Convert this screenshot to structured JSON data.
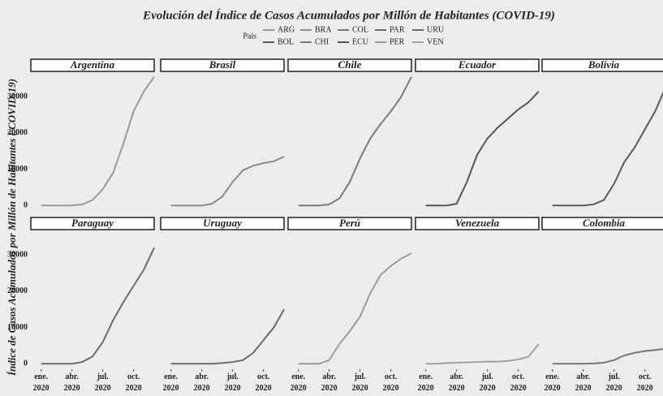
{
  "chart_data": {
    "type": "line",
    "title": "Evolución del Índice de Casos Acumulados por Millón de Habitantes (COVID-19)",
    "ylabel": "Índice de Casos Acumulados por Millón de Habitantes ( COVID-19)",
    "legend_title": "País",
    "legend": [
      {
        "name": "ARG",
        "color": "#9a9a9a"
      },
      {
        "name": "BOL",
        "color": "#5a5a5a"
      },
      {
        "name": "BRA",
        "color": "#8a8a8a"
      },
      {
        "name": "CHI",
        "color": "#7a7a7a"
      },
      {
        "name": "COL",
        "color": "#777777"
      },
      {
        "name": "ECU",
        "color": "#555555"
      },
      {
        "name": "PAR",
        "color": "#6a6a6a"
      },
      {
        "name": "PER",
        "color": "#9a9a9a"
      },
      {
        "name": "URU",
        "color": "#6a6a6a"
      },
      {
        "name": "VEN",
        "color": "#a0a0a0"
      }
    ],
    "x": [
      "2020-01",
      "2020-02",
      "2020-03",
      "2020-04",
      "2020-05",
      "2020-06",
      "2020-07",
      "2020-08",
      "2020-09",
      "2020-10",
      "2020-11",
      "2020-12"
    ],
    "xlim": [
      "2019-12",
      "2020-12"
    ],
    "xticks": [
      {
        "value": "2020-01",
        "label": "ene. 2020"
      },
      {
        "value": "2020-04",
        "label": "abr. 2020"
      },
      {
        "value": "2020-07",
        "label": "jul. 2020"
      },
      {
        "value": "2020-10",
        "label": "oct. 2020"
      }
    ],
    "ylim": [
      -1500,
      37000
    ],
    "yticks": [
      0,
      10000,
      20000,
      30000
    ],
    "panels": [
      {
        "title": "Argentina",
        "color": "#9a9a9a",
        "values": [
          0,
          0,
          0,
          50,
          300,
          1500,
          4500,
          9000,
          17000,
          26000,
          31500,
          35500
        ]
      },
      {
        "title": "Brasil",
        "color": "#8a8a8a",
        "values": [
          0,
          0,
          0,
          0,
          500,
          2500,
          6500,
          9700,
          11000,
          11700,
          12200,
          13500
        ]
      },
      {
        "title": "Chile",
        "color": "#7a7a7a",
        "values": [
          0,
          0,
          0,
          300,
          2000,
          6500,
          13000,
          18500,
          22500,
          26000,
          30000,
          35500
        ]
      },
      {
        "title": "Ecuador",
        "color": "#555555",
        "values": [
          0,
          0,
          0,
          500,
          6500,
          14000,
          18500,
          21500,
          24000,
          26500,
          28500,
          31500
        ]
      },
      {
        "title": "Bolivia",
        "color": "#5a5a5a",
        "values": [
          0,
          0,
          0,
          0,
          300,
          1500,
          6000,
          12000,
          16000,
          21000,
          26000,
          32500
        ]
      },
      {
        "title": "Paraguay",
        "color": "#6a6a6a",
        "values": [
          0,
          0,
          0,
          0,
          500,
          2000,
          6000,
          12000,
          17000,
          21500,
          26000,
          32000
        ]
      },
      {
        "title": "Uruguay",
        "color": "#6a6a6a",
        "values": [
          0,
          0,
          0,
          0,
          0,
          200,
          500,
          1000,
          3000,
          6500,
          10000,
          15000
        ]
      },
      {
        "title": "Perú",
        "color": "#9a9a9a",
        "values": [
          0,
          0,
          0,
          1000,
          5500,
          9000,
          13000,
          19500,
          24500,
          27000,
          29000,
          30500
        ]
      },
      {
        "title": "Venezuela",
        "color": "#a0a0a0",
        "values": [
          0,
          0,
          200,
          300,
          400,
          500,
          600,
          600,
          800,
          1200,
          2000,
          5500
        ]
      },
      {
        "title": "Colombia",
        "color": "#777777",
        "values": [
          0,
          0,
          0,
          0,
          100,
          300,
          1000,
          2300,
          3000,
          3500,
          3800,
          4100
        ]
      }
    ]
  }
}
